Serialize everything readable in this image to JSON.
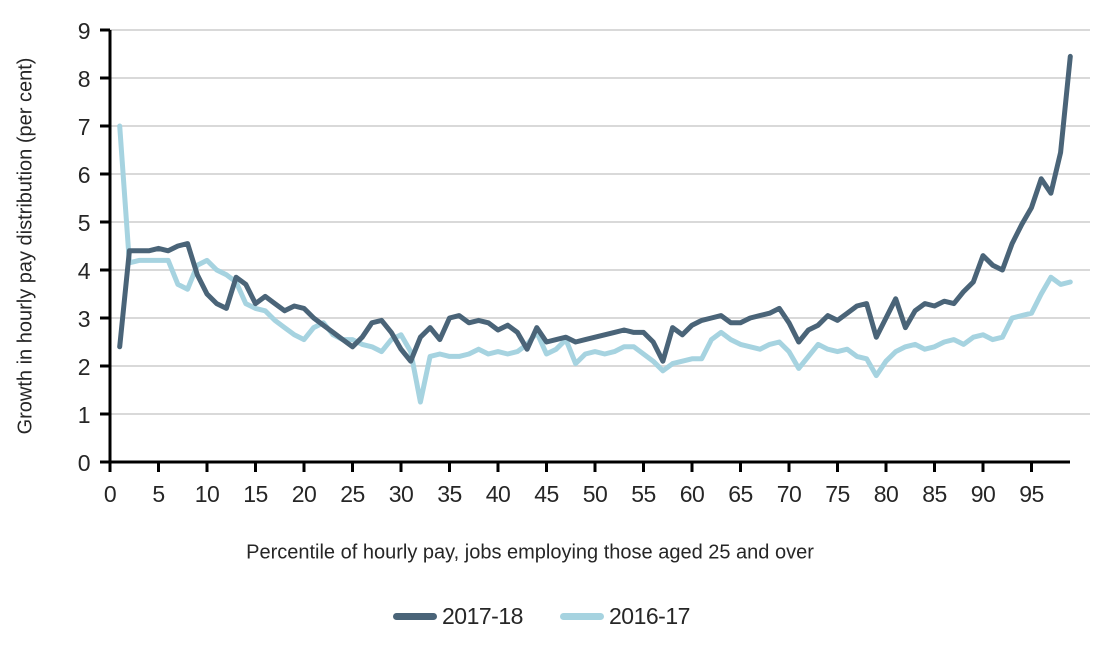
{
  "chart_data": {
    "type": "line",
    "title": "",
    "xlabel": "Percentile of hourly pay, jobs employing those aged 25 and over",
    "ylabel": "Growth in hourly pay distribution (per cent)",
    "xlim": [
      0,
      99
    ],
    "ylim": [
      0,
      9
    ],
    "xticks": [
      0,
      5,
      10,
      15,
      20,
      25,
      30,
      35,
      40,
      45,
      50,
      55,
      60,
      65,
      70,
      75,
      80,
      85,
      90,
      95
    ],
    "yticks": [
      0,
      1,
      2,
      3,
      4,
      5,
      6,
      7,
      8,
      9
    ],
    "grid": "horizontal",
    "legend_position": "bottom",
    "x": [
      1,
      2,
      3,
      4,
      5,
      6,
      7,
      8,
      9,
      10,
      11,
      12,
      13,
      14,
      15,
      16,
      17,
      18,
      19,
      20,
      21,
      22,
      23,
      24,
      25,
      26,
      27,
      28,
      29,
      30,
      31,
      32,
      33,
      34,
      35,
      36,
      37,
      38,
      39,
      40,
      41,
      42,
      43,
      44,
      45,
      46,
      47,
      48,
      49,
      50,
      51,
      52,
      53,
      54,
      55,
      56,
      57,
      58,
      59,
      60,
      61,
      62,
      63,
      64,
      65,
      66,
      67,
      68,
      69,
      70,
      71,
      72,
      73,
      74,
      75,
      76,
      77,
      78,
      79,
      80,
      81,
      82,
      83,
      84,
      85,
      86,
      87,
      88,
      89,
      90,
      91,
      92,
      93,
      94,
      95,
      96,
      97,
      98,
      99
    ],
    "series": [
      {
        "name": "2017-18",
        "color": "#4a6478",
        "values": [
          2.4,
          4.4,
          4.4,
          4.4,
          4.45,
          4.4,
          4.5,
          4.55,
          3.9,
          3.5,
          3.3,
          3.2,
          3.85,
          3.7,
          3.3,
          3.45,
          3.3,
          3.15,
          3.25,
          3.2,
          3.0,
          2.85,
          2.7,
          2.55,
          2.4,
          2.6,
          2.9,
          2.95,
          2.7,
          2.35,
          2.1,
          2.6,
          2.8,
          2.55,
          3.0,
          3.05,
          2.9,
          2.95,
          2.9,
          2.75,
          2.85,
          2.7,
          2.35,
          2.8,
          2.5,
          2.55,
          2.6,
          2.5,
          2.55,
          2.6,
          2.65,
          2.7,
          2.75,
          2.7,
          2.7,
          2.5,
          2.1,
          2.8,
          2.65,
          2.85,
          2.95,
          3.0,
          3.05,
          2.9,
          2.9,
          3.0,
          3.05,
          3.1,
          3.2,
          2.9,
          2.5,
          2.75,
          2.85,
          3.05,
          2.95,
          3.1,
          3.25,
          3.3,
          2.6,
          3.0,
          3.4,
          2.8,
          3.15,
          3.3,
          3.25,
          3.35,
          3.3,
          3.55,
          3.75,
          4.3,
          4.1,
          4.0,
          4.55,
          4.95,
          5.3,
          5.9,
          5.6,
          6.45,
          8.45
        ]
      },
      {
        "name": "2016-17",
        "color": "#a6d3e0",
        "values": [
          7.0,
          4.15,
          4.2,
          4.2,
          4.2,
          4.2,
          3.7,
          3.6,
          4.1,
          4.2,
          4.0,
          3.9,
          3.75,
          3.3,
          3.2,
          3.15,
          2.95,
          2.8,
          2.65,
          2.55,
          2.8,
          2.9,
          2.65,
          2.55,
          2.55,
          2.45,
          2.4,
          2.3,
          2.55,
          2.65,
          2.3,
          1.25,
          2.2,
          2.25,
          2.2,
          2.2,
          2.25,
          2.35,
          2.25,
          2.3,
          2.25,
          2.3,
          2.45,
          2.7,
          2.25,
          2.35,
          2.55,
          2.05,
          2.25,
          2.3,
          2.25,
          2.3,
          2.4,
          2.4,
          2.25,
          2.1,
          1.9,
          2.05,
          2.1,
          2.15,
          2.15,
          2.55,
          2.7,
          2.55,
          2.45,
          2.4,
          2.35,
          2.45,
          2.5,
          2.3,
          1.95,
          2.2,
          2.45,
          2.35,
          2.3,
          2.35,
          2.2,
          2.15,
          1.8,
          2.1,
          2.3,
          2.4,
          2.45,
          2.35,
          2.4,
          2.5,
          2.55,
          2.45,
          2.6,
          2.65,
          2.55,
          2.6,
          3.0,
          3.05,
          3.1,
          3.5,
          3.85,
          3.7,
          3.75
        ]
      }
    ],
    "colors": {
      "axis": "#000000",
      "grid": "#d9d9d9",
      "text": "#262626"
    }
  }
}
